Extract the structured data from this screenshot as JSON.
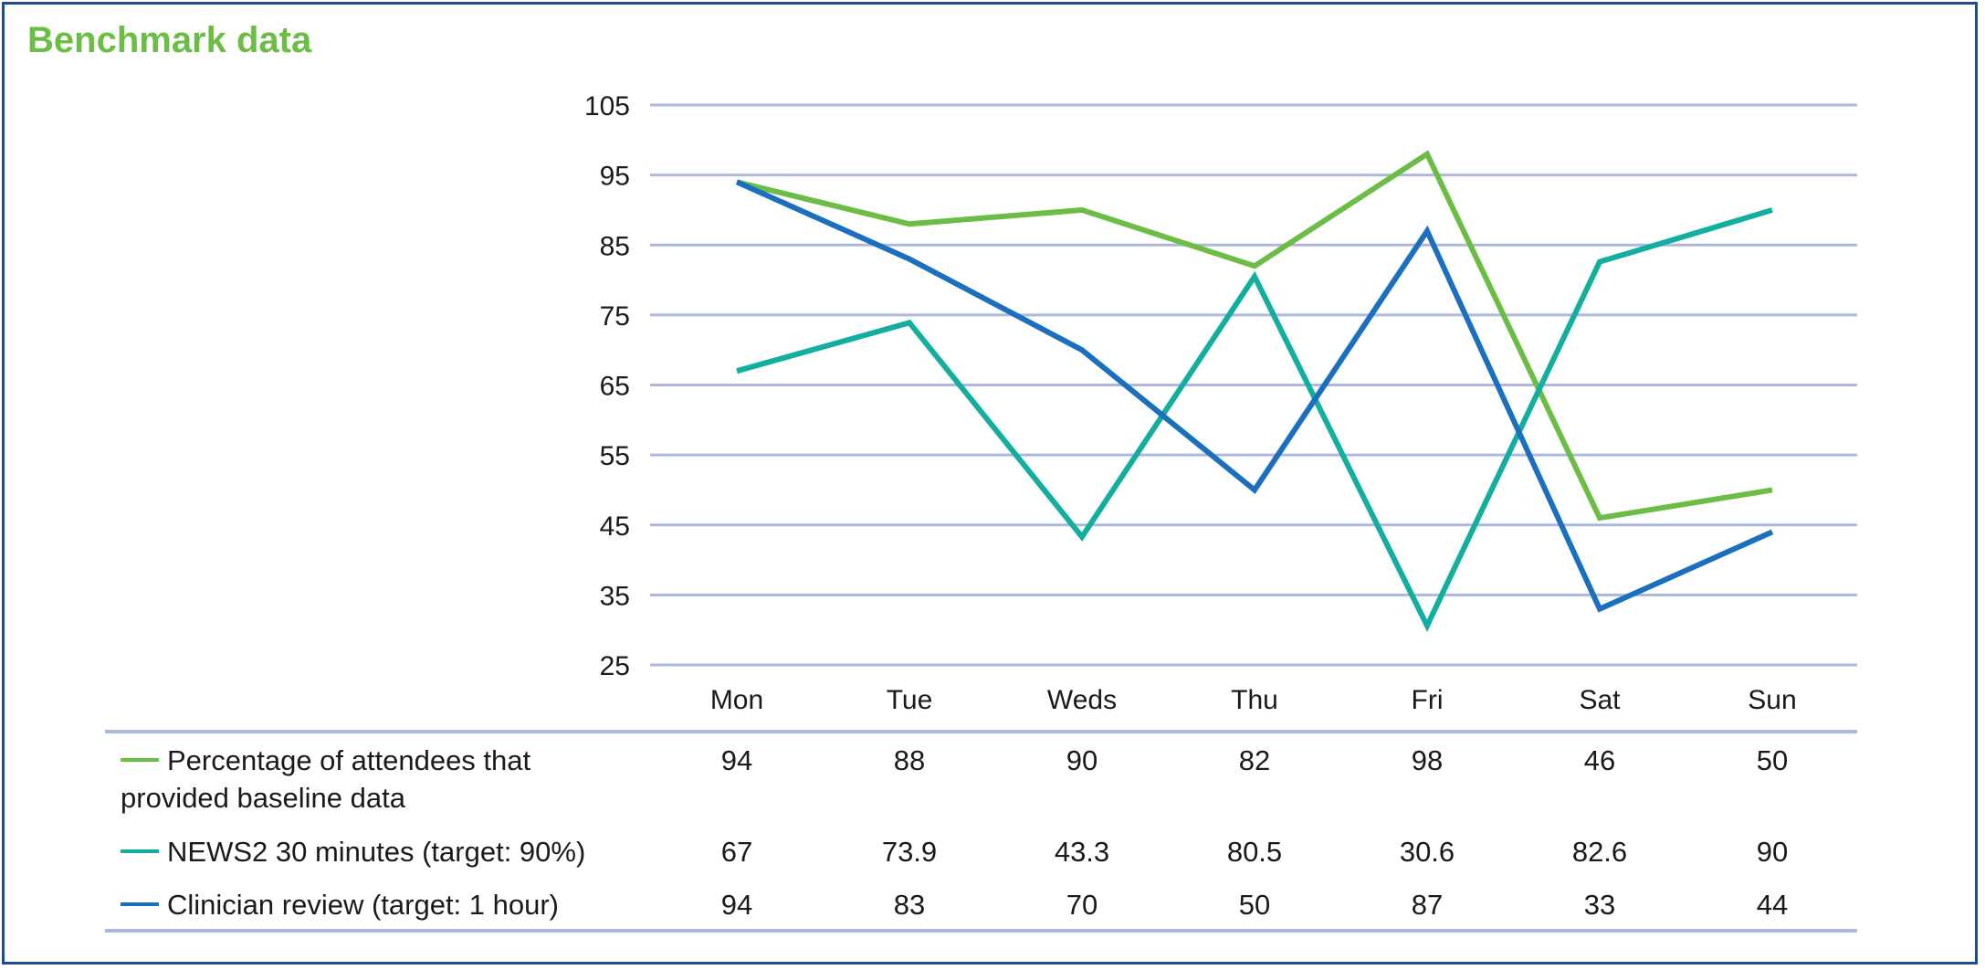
{
  "title": "Benchmark data",
  "chart_data": {
    "type": "line",
    "categories": [
      "Mon",
      "Tue",
      "Weds",
      "Thu",
      "Fri",
      "Sat",
      "Sun"
    ],
    "ylim": [
      25,
      105
    ],
    "yticks": [
      105,
      95,
      85,
      75,
      65,
      55,
      45,
      35,
      25
    ],
    "grid": true,
    "legend_placement": "bottom data table",
    "series": [
      {
        "name_lines": [
          "Percentage of attendees that",
          "provided baseline data"
        ],
        "color": "#6cbd45",
        "values": [
          94,
          88,
          90,
          82,
          98,
          46,
          50
        ],
        "labels": [
          "94",
          "88",
          "90",
          "82",
          "98",
          "46",
          "50"
        ]
      },
      {
        "name_lines": [
          "NEWS2 30 minutes (target: 90%)"
        ],
        "color": "#12aea0",
        "values": [
          67,
          73.9,
          43.3,
          80.5,
          30.6,
          82.6,
          90
        ],
        "labels": [
          "67",
          "73.9",
          "43.3",
          "80.5",
          "30.6",
          "82.6",
          "90"
        ]
      },
      {
        "name_lines": [
          "Clinician review (target: 1 hour)"
        ],
        "color": "#1a6fbf",
        "values": [
          94,
          83,
          70,
          50,
          87,
          33,
          44
        ],
        "labels": [
          "94",
          "83",
          "70",
          "50",
          "87",
          "33",
          "44"
        ]
      }
    ],
    "gridline_color": "#aeb8dc",
    "frame_color": "#1f4e8f"
  }
}
